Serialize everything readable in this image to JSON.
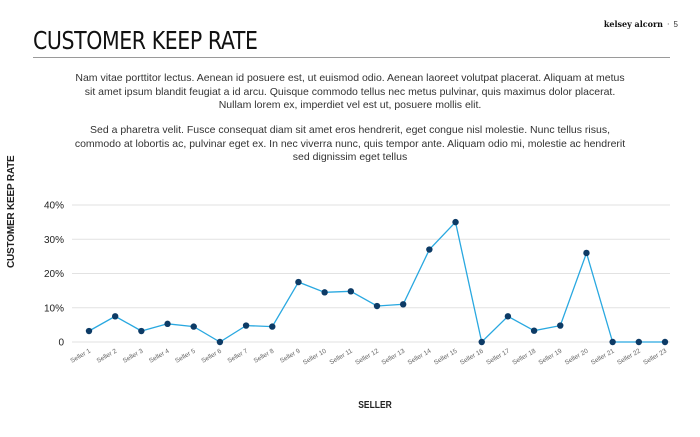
{
  "slide": {
    "title": "CUSTOMER KEEP RATE",
    "brand": "kelsey alcorn",
    "separator": "·",
    "page_number": "5",
    "paragraphs": [
      "Nam vitae porttitor lectus. Aenean id posuere est, ut euismod odio. Aenean laoreet volutpat placerat. Aliquam at metus sit amet ipsum blandit feugiat a id arcu. Quisque commodo tellus nec metus pulvinar, quis maximus dolor placerat. Nullam lorem ex, imperdiet vel est ut, posuere mollis elit.",
      "Sed a pharetra velit. Fusce consequat diam sit amet eros hendrerit, eget congue nisl molestie. Nunc tellus risus, commodo at lobortis ac, pulvinar eget ex. In nec viverra nunc, quis tempor ante. Aliquam odio mi, molestie ac hendrerit sed dignissim eget tellus"
    ]
  },
  "chart_data": {
    "type": "line",
    "title": "",
    "xlabel": "SELLER",
    "ylabel": "CUSTOMER KEEP RATE",
    "categories": [
      "Seller 1",
      "Seller 2",
      "Seller 3",
      "Seller 4",
      "Seller 5",
      "Seller 6",
      "Seller 7",
      "Seller 8",
      "Seller 9",
      "Seller 10",
      "Seller 11",
      "Seller 12",
      "Seller 13",
      "Seller 14",
      "Seller 15",
      "Seller 16",
      "Seller 17",
      "Seller 18",
      "Seller 19",
      "Seller 20",
      "Seller 21",
      "Seller 22",
      "Seller 23"
    ],
    "values": [
      3.2,
      7.5,
      3.2,
      5.3,
      4.5,
      0,
      4.8,
      4.5,
      17.5,
      14.5,
      14.8,
      10.5,
      11,
      27,
      35,
      0,
      7.5,
      3.3,
      4.8,
      26,
      0,
      0,
      0
    ],
    "ylim": [
      0,
      40
    ],
    "yticks": [
      0,
      10,
      20,
      30,
      40
    ],
    "ytick_labels": [
      "0",
      "10%",
      "20%",
      "30%",
      "40%"
    ],
    "grid": true,
    "line_color": "#29a8e0",
    "marker_color": "#0d3b66",
    "gridline_color": "#e2e2e2"
  }
}
